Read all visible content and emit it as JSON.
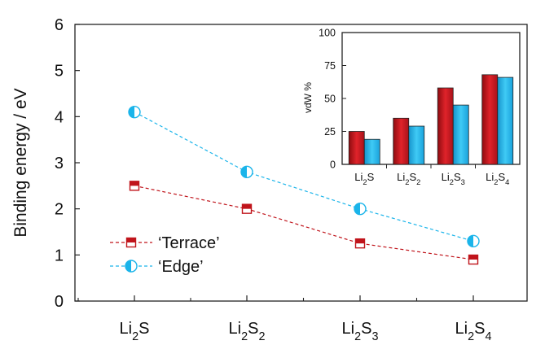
{
  "chart_data": [
    {
      "type": "line",
      "ylabel": "Binding energy / eV",
      "ylim": [
        0,
        6
      ],
      "yticks": [
        0,
        1,
        2,
        3,
        4,
        5,
        6
      ],
      "categories": [
        {
          "base": "Li",
          "sub1": "2",
          "mid": "S",
          "sub2": ""
        },
        {
          "base": "Li",
          "sub1": "2",
          "mid": "S",
          "sub2": "2"
        },
        {
          "base": "Li",
          "sub1": "2",
          "mid": "S",
          "sub2": "3"
        },
        {
          "base": "Li",
          "sub1": "2",
          "mid": "S",
          "sub2": "4"
        }
      ],
      "series": [
        {
          "name": "‘Terrace’",
          "marker": "square-half",
          "color": "#c0141b",
          "values": [
            2.5,
            2.0,
            1.25,
            0.9
          ]
        },
        {
          "name": "‘Edge’",
          "marker": "circle-half",
          "color": "#1ab4ea",
          "values": [
            4.1,
            2.8,
            2.0,
            1.3
          ]
        }
      ],
      "legend_position": "bottom-left",
      "grid": false
    },
    {
      "type": "bar",
      "ylabel": "vdW %",
      "ylim": [
        0,
        100
      ],
      "yticks": [
        0,
        25,
        50,
        75,
        100
      ],
      "categories": [
        {
          "base": "Li",
          "sub1": "2",
          "mid": "S",
          "sub2": ""
        },
        {
          "base": "Li",
          "sub1": "2",
          "mid": "S",
          "sub2": "2"
        },
        {
          "base": "Li",
          "sub1": "2",
          "mid": "S",
          "sub2": "3"
        },
        {
          "base": "Li",
          "sub1": "2",
          "mid": "S",
          "sub2": "4"
        }
      ],
      "series": [
        {
          "color": "#c0141b",
          "values": [
            25,
            35,
            58,
            68
          ]
        },
        {
          "color": "#1ab4ea",
          "values": [
            19,
            29,
            45,
            66
          ]
        }
      ],
      "position": "inset top-right",
      "grid": false
    }
  ]
}
